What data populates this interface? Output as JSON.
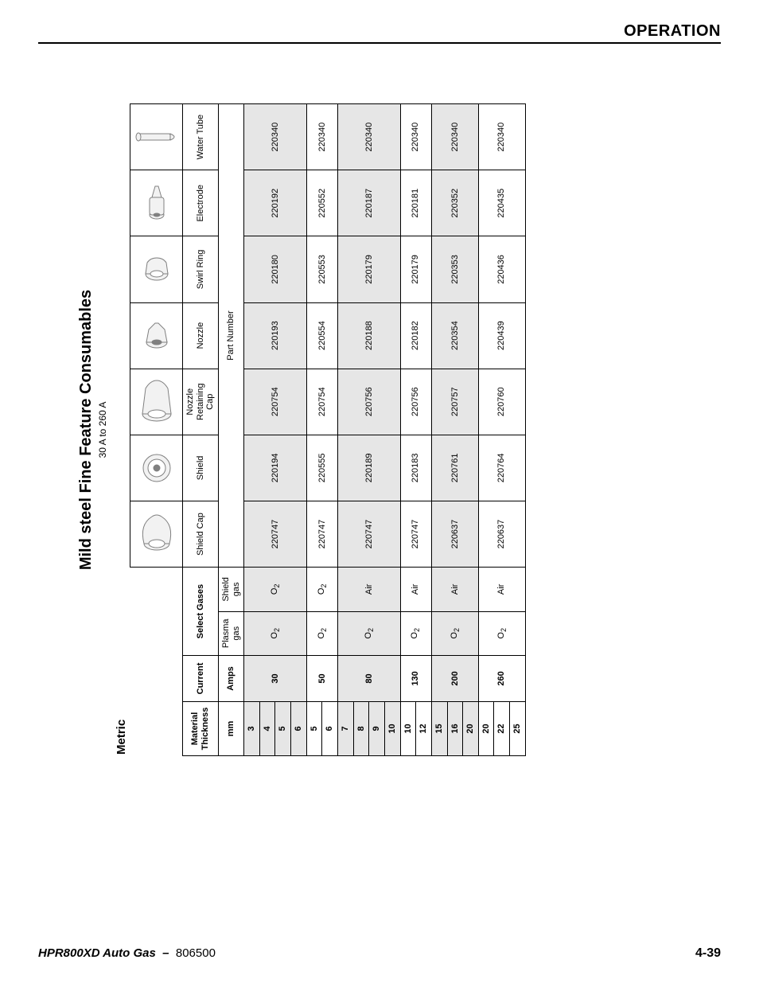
{
  "header": {
    "section": "OPERATION"
  },
  "footer": {
    "product": "HPR800XD Auto Gas",
    "sep": "–",
    "docnum": "806500",
    "page": "4-39"
  },
  "table": {
    "title": "Mild steel Fine Feature Consumables",
    "subtitle": "30 A to 260 A",
    "metric_label": "Metric",
    "headers": {
      "material_thickness": "Material\nThickness",
      "mm": "mm",
      "current": "Current",
      "amps": "Amps",
      "select_gases": "Select Gases",
      "plasma_gas": "Plasma\ngas",
      "shield_gas": "Shield\ngas",
      "shield_cap": "Shield Cap",
      "shield": "Shield",
      "nozzle_ret_cap": "Nozzle\nRetaining\nCap",
      "nozzle": "Nozzle",
      "swirl_ring": "Swirl Ring",
      "electrode": "Electrode",
      "water_tube": "Water Tube",
      "part_number": "Part Number"
    },
    "gas_labels": {
      "O2": "O",
      "Air": "Air"
    },
    "colors": {
      "band_bg": "#e6e6e6",
      "border": "#000000",
      "text": "#000000",
      "icon_stroke": "#808080",
      "icon_fill": "#f2f2f2"
    },
    "groups": [
      {
        "amps": "30",
        "plasma": "O2",
        "shield": "O2",
        "band": true,
        "mm": [
          "3",
          "4",
          "5",
          "6"
        ],
        "parts": {
          "shield_cap": "220747",
          "shield": "220194",
          "nozzle_ret": "220754",
          "nozzle": "220193",
          "swirl": "220180",
          "electrode": "220192",
          "water": "220340"
        }
      },
      {
        "amps": "50",
        "plasma": "O2",
        "shield": "O2",
        "band": false,
        "mm": [
          "5",
          "6"
        ],
        "parts": {
          "shield_cap": "220747",
          "shield": "220555",
          "nozzle_ret": "220754",
          "nozzle": "220554",
          "swirl": "220553",
          "electrode": "220552",
          "water": "220340"
        }
      },
      {
        "amps": "80",
        "plasma": "O2",
        "shield": "Air",
        "band": true,
        "mm": [
          "7",
          "8",
          "9",
          "10"
        ],
        "parts": {
          "shield_cap": "220747",
          "shield": "220189",
          "nozzle_ret": "220756",
          "nozzle": "220188",
          "swirl": "220179",
          "electrode": "220187",
          "water": "220340"
        }
      },
      {
        "amps": "130",
        "plasma": "O2",
        "shield": "Air",
        "band": false,
        "mm": [
          "10",
          "12"
        ],
        "parts": {
          "shield_cap": "220747",
          "shield": "220183",
          "nozzle_ret": "220756",
          "nozzle": "220182",
          "swirl": "220179",
          "electrode": "220181",
          "water": "220340"
        }
      },
      {
        "amps": "200",
        "plasma": "O2",
        "shield": "Air",
        "band": true,
        "mm": [
          "15",
          "16",
          "20"
        ],
        "parts": {
          "shield_cap": "220637",
          "shield": "220761",
          "nozzle_ret": "220757",
          "nozzle": "220354",
          "swirl": "220353",
          "electrode": "220352",
          "water": "220340"
        }
      },
      {
        "amps": "260",
        "plasma": "O2",
        "shield": "Air",
        "band": false,
        "mm": [
          "20",
          "22",
          "25"
        ],
        "parts": {
          "shield_cap": "220637",
          "shield": "220764",
          "nozzle_ret": "220760",
          "nozzle": "220439",
          "swirl": "220436",
          "electrode": "220435",
          "water": "220340"
        }
      }
    ]
  }
}
